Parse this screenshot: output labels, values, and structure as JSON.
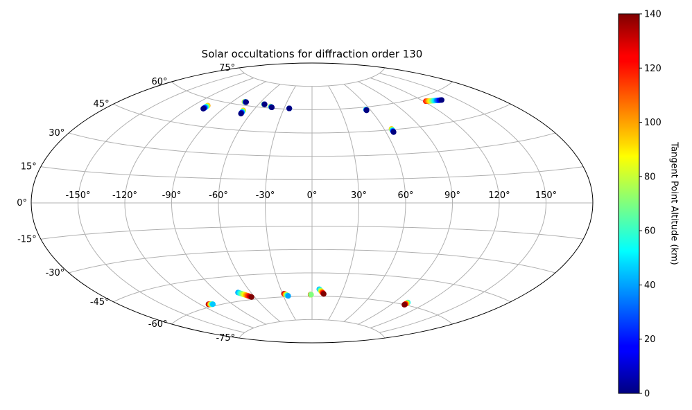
{
  "chart_data": {
    "type": "scatter",
    "projection": "aitoff",
    "title": "Solar occultations for diffraction order 130",
    "lon_ticks": [
      "-150°",
      "-120°",
      "-90°",
      "-60°",
      "-30°",
      "0°",
      "30°",
      "60°",
      "90°",
      "120°",
      "150°"
    ],
    "lat_ticks": [
      "-75°",
      "-60°",
      "-45°",
      "-30°",
      "-15°",
      "0°",
      "15°",
      "30°",
      "45°",
      "60°",
      "75°"
    ],
    "lon_tick_values": [
      -150,
      -120,
      -90,
      -60,
      -30,
      0,
      30,
      60,
      90,
      120,
      150
    ],
    "lat_tick_values": [
      -75,
      -60,
      -45,
      -30,
      -15,
      0,
      15,
      30,
      45,
      60,
      75
    ],
    "xlim": [
      -180,
      180
    ],
    "ylim": [
      -90,
      90
    ],
    "grid": true,
    "colormap": "jet",
    "colorbar": {
      "label": "Tangent Point Altitude (km)",
      "range": [
        0,
        140
      ],
      "ticks": [
        "0",
        "20",
        "40",
        "60",
        "80",
        "100",
        "120",
        "140"
      ],
      "tick_values": [
        0,
        20,
        40,
        60,
        80,
        100,
        120,
        140
      ],
      "placement": "right"
    },
    "tracks": [
      {
        "start": [
          -107.5,
          56.5,
          100
        ],
        "end": [
          -107.5,
          54.5,
          0
        ]
      },
      {
        "start": [
          -77.5,
          62.0,
          100
        ],
        "end": [
          -75.5,
          62.0,
          0
        ]
      },
      {
        "start": [
          -69.5,
          57.0,
          100
        ],
        "end": [
          -69.0,
          55.0,
          0
        ]
      },
      {
        "start": [
          -54.5,
          62.0,
          100
        ],
        "end": [
          -53.5,
          62.0,
          0
        ]
      },
      {
        "start": [
          -45.5,
          61.0,
          100
        ],
        "end": [
          -43.5,
          60.5,
          0
        ]
      },
      {
        "start": [
          -24.5,
          60.5,
          70
        ],
        "end": [
          -24.5,
          60.5,
          0
        ]
      },
      {
        "start": [
          56.0,
          58.5,
          70
        ],
        "end": [
          56.0,
          58.0,
          0
        ]
      },
      {
        "start": [
          66.0,
          45.5,
          100
        ],
        "end": [
          66.0,
          43.5,
          0
        ]
      },
      {
        "start": [
          122.0,
          57.5,
          120
        ],
        "end": [
          137.0,
          56.0,
          0
        ]
      },
      {
        "start": [
          -112.5,
          -58.5,
          140
        ],
        "end": [
          -108.5,
          -59.0,
          45
        ]
      },
      {
        "start": [
          -72.0,
          -55.0,
          40
        ],
        "end": [
          -63.0,
          -58.5,
          140
        ]
      },
      {
        "start": [
          -28.5,
          -58.0,
          140
        ],
        "end": [
          -25.0,
          -59.5,
          40
        ]
      },
      {
        "start": [
          -1.5,
          -59.0,
          140
        ],
        "end": [
          -1.0,
          -59.0,
          70
        ]
      },
      {
        "start": [
          7.0,
          -55.5,
          40
        ],
        "end": [
          12.0,
          -58.5,
          140
        ]
      },
      {
        "start": [
          103.0,
          -58.5,
          50
        ],
        "end": [
          103.0,
          -60.0,
          140
        ]
      }
    ]
  }
}
